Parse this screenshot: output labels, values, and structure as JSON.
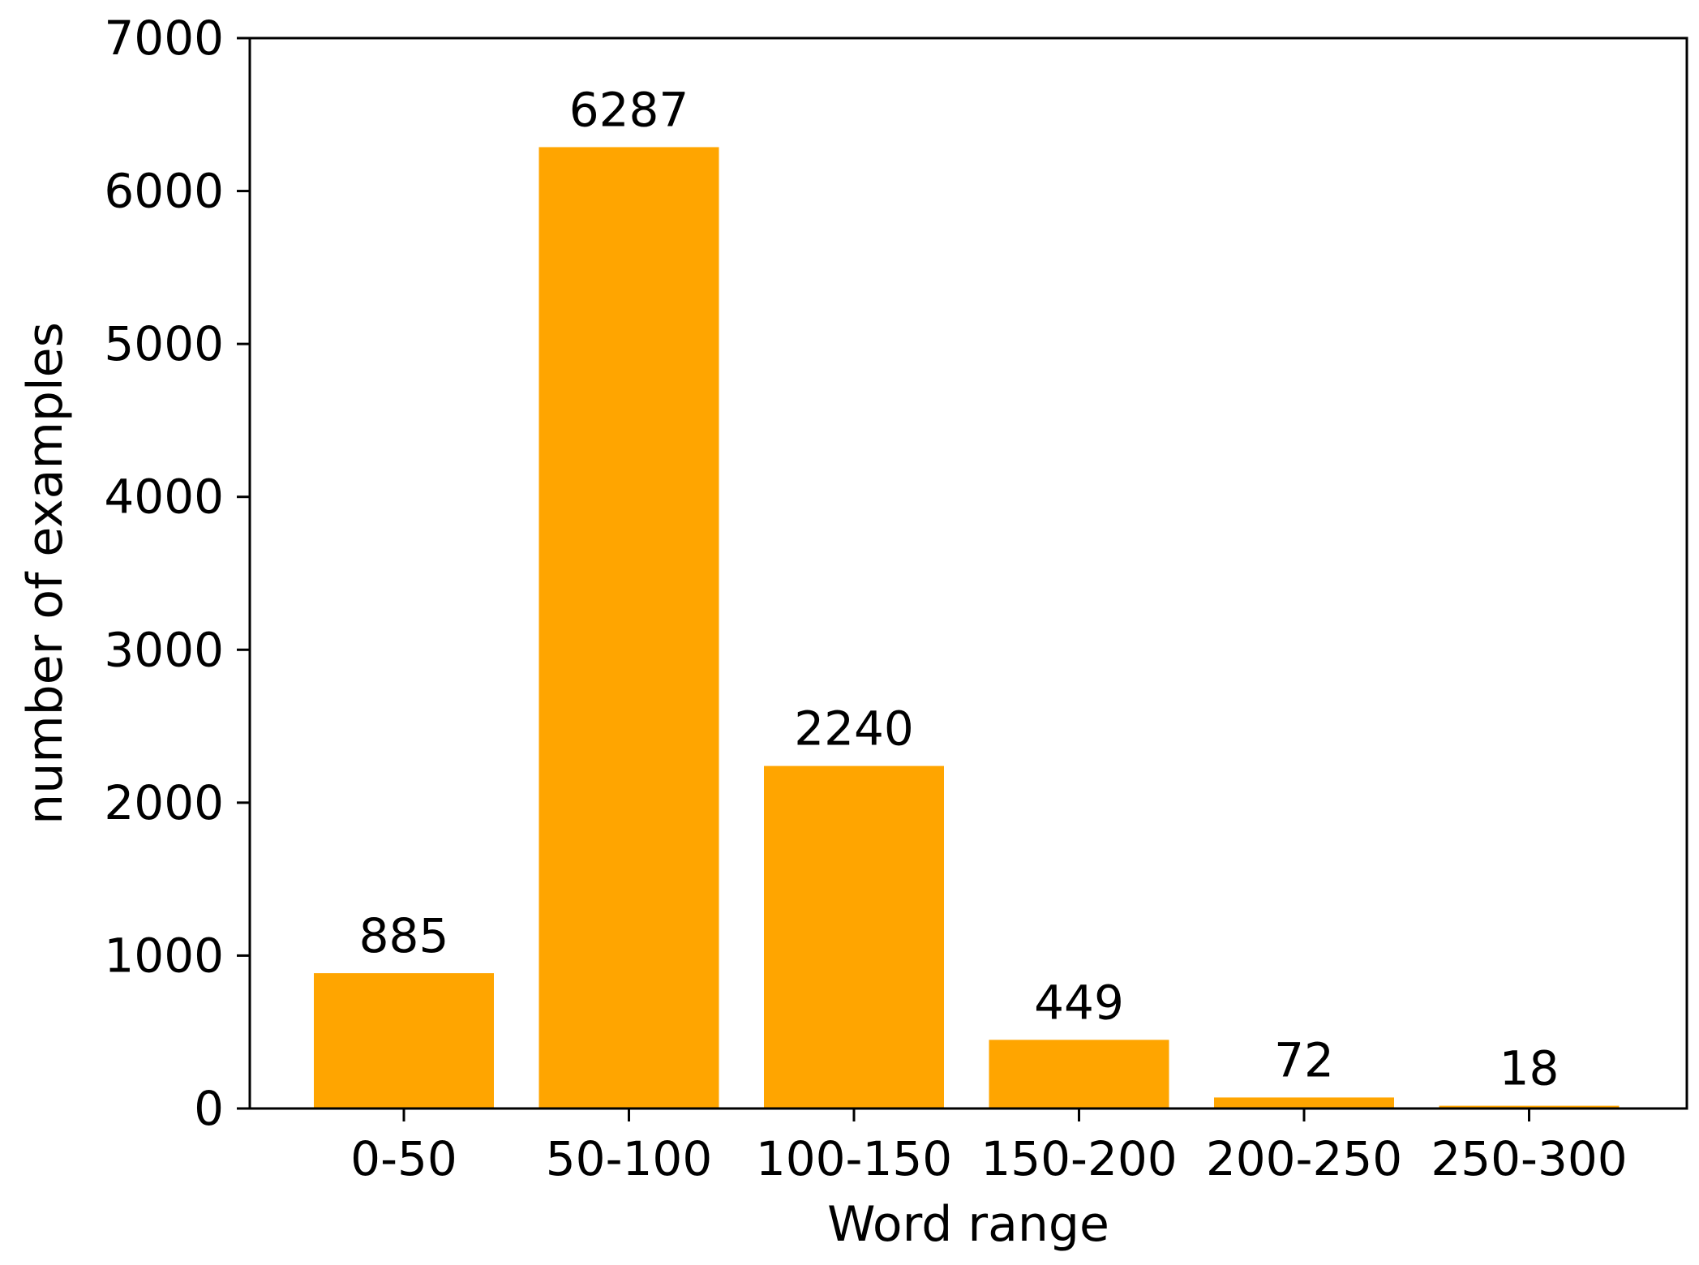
{
  "chart_data": {
    "type": "bar",
    "categories": [
      "0-50",
      "50-100",
      "100-150",
      "150-200",
      "200-250",
      "250-300"
    ],
    "values": [
      885,
      6287,
      2240,
      449,
      72,
      18
    ],
    "data_labels": [
      "885",
      "6287",
      "2240",
      "449",
      "72",
      "18"
    ],
    "title": "",
    "xlabel": "Word range",
    "ylabel": "number of examples",
    "ylim": [
      0,
      7000
    ],
    "yticks": [
      0,
      1000,
      2000,
      3000,
      4000,
      5000,
      6000,
      7000
    ],
    "ytick_labels": [
      "0",
      "1000",
      "2000",
      "3000",
      "4000",
      "5000",
      "6000",
      "7000"
    ],
    "bar_color": "#FFA500",
    "grid": false,
    "legend": "none"
  }
}
